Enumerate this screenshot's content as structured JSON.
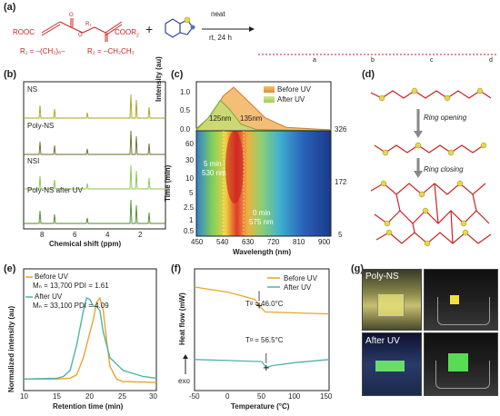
{
  "panels": {
    "a": {
      "label": "(a)",
      "reagent_left": "ROOC",
      "reagent_right": "COOR",
      "reagent_sub": "2",
      "r1_def": "R₁ = –(CH₂)₆–",
      "r2_def": "R₂ = –CH₂CH₃",
      "plus": "+",
      "condition_top": "neat",
      "condition_bottom": "rt, 24 h",
      "sub_letters": [
        "a",
        "b",
        "c",
        "d"
      ]
    },
    "b": {
      "label": "(b)",
      "traces": [
        "NS",
        "Poly-NS",
        "NSI",
        "Poly-NS after UV"
      ],
      "xlabel": "Chemical shift (ppm)",
      "ticks": [
        "8",
        "6",
        "4",
        "2"
      ]
    },
    "c": {
      "label": "(c)",
      "top_ylabel": "Intensity (au)",
      "top_ticks": [
        "1.0",
        "0.5",
        "0.0"
      ],
      "legend": [
        "Before UV",
        "After UV"
      ],
      "peak_labels": [
        "125nm",
        "135nm"
      ],
      "annot_5min": "5 min",
      "annot_530": "530 nm",
      "annot_0min": "0 min",
      "annot_575": "575 nm",
      "ylabel": "Time (min)",
      "yticks": [
        "60",
        "30",
        "10",
        "5",
        "2.5",
        "1",
        "0.5"
      ],
      "xlabel": "Wavelength (nm)",
      "xticks": [
        "450",
        "540",
        "630",
        "720",
        "810",
        "900"
      ],
      "colorbar_ticks": [
        "326",
        "172",
        "5"
      ]
    },
    "d": {
      "label": "(d)",
      "step1": "Ring opening",
      "step2": "Ring closing"
    },
    "e": {
      "label": "(e)",
      "legend1": "Before UV",
      "legend1_stats": "Mₙ = 13,700  PDI = 1.61",
      "legend2": "After UV",
      "legend2_stats": "Mₙ = 33,100  PDI = 4.09",
      "ylabel": "Normalized intensity (au)",
      "xlabel": "Retention time (min)",
      "xticks": [
        "10",
        "15",
        "20",
        "25",
        "30"
      ]
    },
    "f": {
      "label": "(f)",
      "legend": [
        "Before UV",
        "After UV"
      ],
      "tg1": "Tᵍ = 46.0°C",
      "tg2": "Tᵍ = 56.5°C",
      "ylabel": "Heat flow (mW)",
      "exo": "exo",
      "xlabel": "Temperature (°C)",
      "xticks": [
        "-50",
        "0",
        "50",
        "100",
        "150"
      ]
    },
    "g": {
      "label": "(g)",
      "photo1": "Poly-NS",
      "photo2": "After UV"
    }
  },
  "colors": {
    "orange": "#e8a52a",
    "green": "#7fbf4d",
    "teal": "#4fb3a6",
    "red": "#cc2222",
    "navy": "#2a3a8c"
  },
  "chart_data": [
    {
      "type": "line",
      "title": "",
      "xlabel": "Retention time (min)",
      "ylabel": "Normalized intensity (au)",
      "xlim": [
        10,
        30
      ],
      "series": [
        {
          "name": "Before UV",
          "x": [
            10,
            15,
            17,
            18,
            19,
            20,
            20.5,
            21,
            21.5,
            22,
            22.5,
            23,
            24,
            25,
            30
          ],
          "y": [
            0.05,
            0.05,
            0.06,
            0.1,
            0.3,
            0.6,
            0.75,
            0.95,
            1.0,
            0.85,
            0.5,
            0.2,
            0.05,
            0.02,
            0.01
          ]
        },
        {
          "name": "After UV",
          "x": [
            10,
            15,
            16,
            17,
            18,
            19,
            19.5,
            20,
            20.5,
            21,
            21.5,
            22,
            23,
            25,
            28,
            30
          ],
          "y": [
            0.05,
            0.06,
            0.08,
            0.15,
            0.45,
            0.85,
            1.0,
            0.98,
            0.9,
            0.9,
            0.85,
            0.6,
            0.3,
            0.15,
            0.08,
            0.06
          ]
        }
      ]
    },
    {
      "type": "line",
      "title": "",
      "xlabel": "Temperature (°C)",
      "ylabel": "Heat flow (mW)",
      "xlim": [
        -50,
        150
      ],
      "series": [
        {
          "name": "Before UV",
          "x": [
            -50,
            0,
            40,
            46,
            55,
            100,
            150
          ],
          "y": [
            1.0,
            0.95,
            0.88,
            0.82,
            0.76,
            0.75,
            0.74
          ]
        },
        {
          "name": "After UV",
          "x": [
            -50,
            0,
            50,
            56.5,
            65,
            100,
            150
          ],
          "y": [
            0.3,
            0.29,
            0.28,
            0.22,
            0.24,
            0.27,
            0.3
          ]
        }
      ]
    },
    {
      "type": "area",
      "title": "",
      "xlabel": "Wavelength (nm)",
      "ylabel": "Intensity (au)",
      "xlim": [
        450,
        900
      ],
      "ylim": [
        0,
        1
      ],
      "series": [
        {
          "name": "Before UV",
          "x": [
            450,
            500,
            540,
            575,
            620,
            680,
            750,
            900
          ],
          "y": [
            0.05,
            0.35,
            0.8,
            1.0,
            0.7,
            0.3,
            0.08,
            0.02
          ]
        },
        {
          "name": "After UV",
          "x": [
            450,
            490,
            530,
            560,
            600,
            650,
            900
          ],
          "y": [
            0.02,
            0.3,
            0.7,
            0.5,
            0.15,
            0.03,
            0.0
          ]
        }
      ]
    }
  ]
}
